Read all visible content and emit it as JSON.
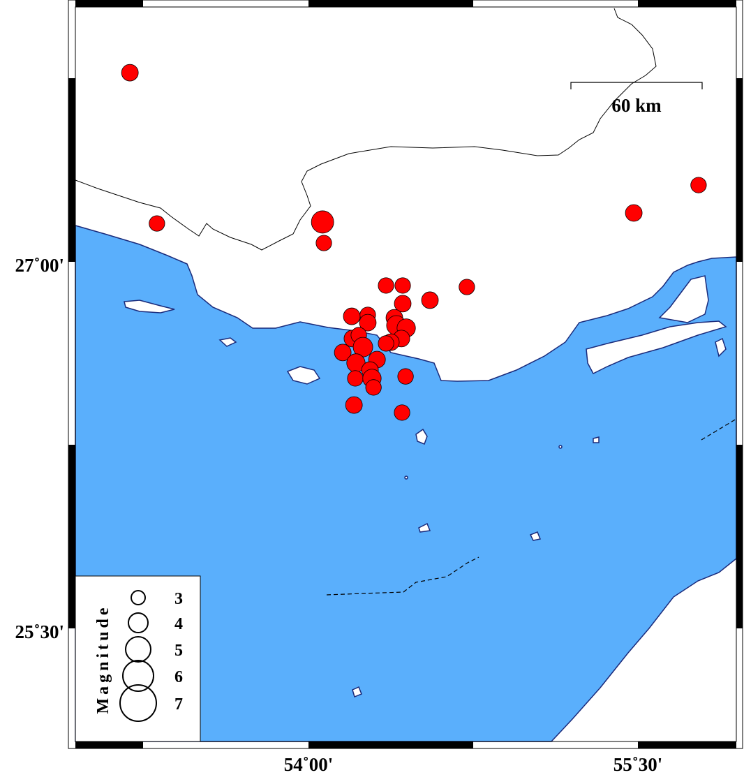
{
  "map": {
    "extent": {
      "lon": [
        53.21,
        56.22
      ],
      "lat": [
        24.93,
        27.98
      ]
    },
    "colors": {
      "sea": "#5aaffc",
      "land": "#ffffff",
      "coastline": "#1a2a7a",
      "event": "#ff0000",
      "boundary": "#000000"
    },
    "lon_ticks": [
      {
        "value": 54.0,
        "label": "54˚00'"
      },
      {
        "value": 55.5,
        "label": "55˚30'"
      }
    ],
    "lat_ticks": [
      {
        "value": 27.0,
        "label": "27˚00'"
      },
      {
        "value": 25.5,
        "label": "25˚30'"
      }
    ],
    "scale_bar": {
      "label": "60 km",
      "length_km": 60
    },
    "legend": {
      "title": "Magnitude",
      "entries": [
        {
          "magnitude": 3,
          "label": "3"
        },
        {
          "magnitude": 4,
          "label": "4"
        },
        {
          "magnitude": 5,
          "label": "5"
        },
        {
          "magnitude": 6,
          "label": "6"
        },
        {
          "magnitude": 7,
          "label": "7"
        }
      ]
    },
    "events": [
      {
        "lon": 53.187,
        "lat": 27.774,
        "mag": 3.5
      },
      {
        "lon": 53.31,
        "lat": 27.157,
        "mag": 3.3
      },
      {
        "lon": 54.064,
        "lat": 27.163,
        "mag": 4.5
      },
      {
        "lon": 54.07,
        "lat": 27.077,
        "mag": 3.3
      },
      {
        "lon": 55.481,
        "lat": 27.2,
        "mag": 3.5
      },
      {
        "lon": 55.776,
        "lat": 27.314,
        "mag": 3.3
      },
      {
        "lon": 54.353,
        "lat": 26.903,
        "mag": 3.3
      },
      {
        "lon": 54.429,
        "lat": 26.903,
        "mag": 3.3
      },
      {
        "lon": 54.721,
        "lat": 26.897,
        "mag": 3.3
      },
      {
        "lon": 54.553,
        "lat": 26.843,
        "mag": 3.5
      },
      {
        "lon": 54.429,
        "lat": 26.829,
        "mag": 3.5
      },
      {
        "lon": 54.197,
        "lat": 26.777,
        "mag": 3.5
      },
      {
        "lon": 54.27,
        "lat": 26.783,
        "mag": 3.3
      },
      {
        "lon": 54.27,
        "lat": 26.751,
        "mag": 3.5
      },
      {
        "lon": 54.391,
        "lat": 26.771,
        "mag": 3.5
      },
      {
        "lon": 54.4,
        "lat": 26.74,
        "mag": 4.0
      },
      {
        "lon": 54.445,
        "lat": 26.729,
        "mag": 3.8
      },
      {
        "lon": 54.423,
        "lat": 26.686,
        "mag": 3.5
      },
      {
        "lon": 54.375,
        "lat": 26.671,
        "mag": 3.5
      },
      {
        "lon": 54.2,
        "lat": 26.686,
        "mag": 3.5
      },
      {
        "lon": 54.229,
        "lat": 26.7,
        "mag": 3.3
      },
      {
        "lon": 54.248,
        "lat": 26.651,
        "mag": 4.0
      },
      {
        "lon": 54.353,
        "lat": 26.666,
        "mag": 3.3
      },
      {
        "lon": 54.156,
        "lat": 26.629,
        "mag": 3.5
      },
      {
        "lon": 54.216,
        "lat": 26.586,
        "mag": 3.8
      },
      {
        "lon": 54.312,
        "lat": 26.6,
        "mag": 3.5
      },
      {
        "lon": 54.28,
        "lat": 26.557,
        "mag": 3.5
      },
      {
        "lon": 54.213,
        "lat": 26.523,
        "mag": 3.3
      },
      {
        "lon": 54.289,
        "lat": 26.523,
        "mag": 3.8
      },
      {
        "lon": 54.296,
        "lat": 26.486,
        "mag": 3.3
      },
      {
        "lon": 54.442,
        "lat": 26.531,
        "mag": 3.3
      },
      {
        "lon": 54.207,
        "lat": 26.414,
        "mag": 3.5
      },
      {
        "lon": 54.426,
        "lat": 26.383,
        "mag": 3.3
      }
    ]
  }
}
